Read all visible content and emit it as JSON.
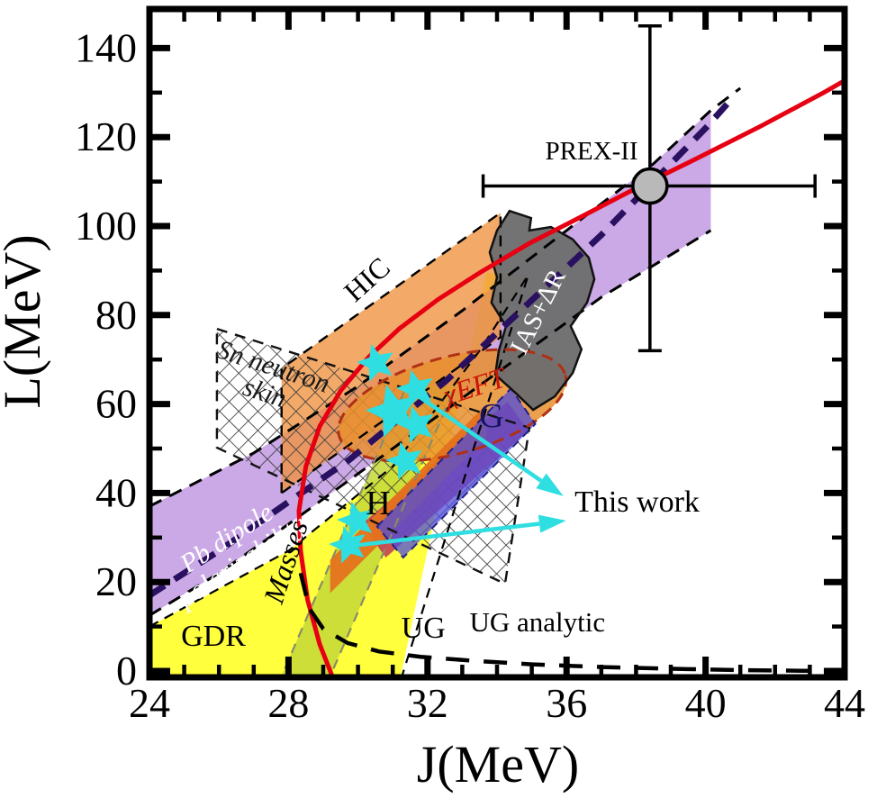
{
  "figure": {
    "background": "#ffffff",
    "frame_color": "#000000",
    "accent_cyan": "#2edee1",
    "accent_red": "#e60012"
  },
  "chart_data": {
    "type": "scatter",
    "title": "",
    "xlabel": "J(MeV)",
    "ylabel": "L(MeV)",
    "xlim": [
      24,
      44
    ],
    "ylim": [
      0,
      140
    ],
    "x_major_ticks": [
      24,
      28,
      32,
      36,
      40,
      44
    ],
    "x_minor_step": 1,
    "y_major_ticks": [
      0,
      20,
      40,
      60,
      80,
      100,
      120,
      140
    ],
    "y_minor_step": 10,
    "grid": false,
    "regions": [
      {
        "id": "gdr",
        "label_lines": [
          "GDR"
        ],
        "label_at": [
          25.84,
          7.7
        ],
        "label_rot": 0,
        "label_color": "#000000",
        "label_size": 34,
        "label_style": "normal",
        "fill": "#ffff2e",
        "fill_opacity": 0.92,
        "polygon": [
          [
            24,
            10
          ],
          [
            28,
            27
          ],
          [
            31,
            46
          ],
          [
            33.5,
            72
          ],
          [
            34.9,
            89
          ],
          [
            33.7,
            89.5
          ],
          [
            31.15,
            -4
          ],
          [
            24,
            -4
          ]
        ],
        "border_paths": [
          [
            [
              24,
              10
            ],
            [
              28,
              27
            ],
            [
              31,
              46
            ],
            [
              33.5,
              72
            ],
            [
              34.9,
              89
            ],
            [
              31.15,
              -4
            ]
          ]
        ],
        "border": {
          "color": "#000000",
          "width": 2.2,
          "dash": [
            11,
            8
          ]
        }
      },
      {
        "id": "pb-dipole-polarizability",
        "label_lines": [
          "Pb dipole",
          "polarizability"
        ],
        "label_at": [
          26.38,
          27.9
        ],
        "label_rot": -33,
        "label_color": "#ffffff",
        "label_size": 30,
        "label_style": "italic",
        "fill": "#a86fd6",
        "fill_opacity": 0.6,
        "polygon": [
          [
            24,
            37
          ],
          [
            27,
            49
          ],
          [
            30,
            64
          ],
          [
            33,
            81
          ],
          [
            36,
            99
          ],
          [
            38.5,
            114
          ],
          [
            40.15,
            126
          ],
          [
            40.15,
            99
          ],
          [
            37,
            84
          ],
          [
            34,
            67
          ],
          [
            31,
            50
          ],
          [
            28,
            33
          ],
          [
            26,
            22
          ],
          [
            24,
            12.5
          ]
        ],
        "border_paths": [
          [
            [
              24,
              37
            ],
            [
              27,
              49
            ],
            [
              30,
              64
            ],
            [
              33,
              81
            ],
            [
              36,
              99
            ],
            [
              38.5,
              114
            ],
            [
              40.15,
              126
            ],
            [
              41,
              131
            ]
          ],
          [
            [
              24,
              12.5
            ],
            [
              26,
              22
            ],
            [
              28,
              33
            ],
            [
              31,
              50
            ],
            [
              34,
              67
            ],
            [
              37,
              84
            ],
            [
              40.15,
              99
            ]
          ]
        ],
        "border": {
          "color": "#000000",
          "width": 3,
          "dash": [
            15,
            10
          ]
        }
      },
      {
        "id": "hic",
        "label_lines": [
          "HIC"
        ],
        "label_at": [
          30.27,
          87.9
        ],
        "label_rot": -42,
        "label_color": "#000000",
        "label_size": 32,
        "label_style": "normal",
        "fill": "#f0923e",
        "fill_opacity": 0.78,
        "border_closed": true,
        "polygon": [
          [
            27.8,
            40
          ],
          [
            27.8,
            68
          ],
          [
            34.1,
            103
          ],
          [
            34.1,
            75
          ]
        ],
        "border": {
          "color": "#000000",
          "width": 2.4,
          "dash": [
            12,
            9
          ]
        }
      },
      {
        "id": "masses",
        "label_lines": [
          "Masses"
        ],
        "label_at": [
          27.94,
          24.5
        ],
        "label_rot": -72,
        "label_color": "#000000",
        "label_size": 32,
        "label_style": "italic",
        "fill": "#c3d836",
        "fill_opacity": 0.85,
        "polygon": [
          [
            27.7,
            -3
          ],
          [
            29.1,
            -3
          ],
          [
            32.8,
            64
          ],
          [
            31.4,
            64
          ]
        ],
        "border_paths": [
          [
            [
              27.7,
              -3
            ],
            [
              31.4,
              64
            ]
          ],
          [
            [
              29.1,
              -3
            ],
            [
              32.8,
              64
            ]
          ]
        ],
        "border": {
          "color": "#8a8a6a",
          "width": 2.2,
          "dash": [
            11,
            8
          ]
        }
      },
      {
        "id": "sn-neutron-skin",
        "label_lines": [
          "Sn neutron",
          "skin"
        ],
        "label_at": [
          27.47,
          66.2
        ],
        "label_rot": 18,
        "label_color": "#1a1a1a",
        "label_size": 30,
        "label_style": "italic",
        "fill": "hatch",
        "fill_opacity": 1,
        "border_closed": true,
        "polygon": [
          [
            25.94,
            76.9
          ],
          [
            34.93,
            54.7
          ],
          [
            34.23,
            19.6
          ],
          [
            25.94,
            50.2
          ]
        ],
        "border": {
          "color": "#111111",
          "width": 2.4,
          "dash": [
            12,
            9
          ]
        }
      },
      {
        "id": "chi-eft",
        "label_lines": [
          "χEFT"
        ],
        "label_at": [
          33.35,
          63.8
        ],
        "label_rot": -18,
        "label_color": "#cc1407",
        "label_size": 32,
        "label_style": "italic",
        "fill": "#e88f2e",
        "fill_opacity": 0.85,
        "ellipse": {
          "cx": 32.71,
          "cy": 59.7,
          "rx_J": 3.37,
          "ry_L": 10.9,
          "rot_deg": -15
        },
        "border": {
          "color": "#b03015",
          "width": 3,
          "dash": [
            13,
            8
          ]
        }
      },
      {
        "id": "crimson-band",
        "label_lines": [],
        "label_at": [
          32,
          45
        ],
        "label_rot": 0,
        "label_color": "#000000",
        "label_size": 0,
        "label_style": "normal",
        "fill": "#c43a56",
        "fill_opacity": 0.88,
        "polygon": [
          [
            30.1,
            33
          ],
          [
            34.3,
            60.5
          ],
          [
            34.9,
            54
          ],
          [
            30.8,
            25.5
          ]
        ]
      },
      {
        "id": "h-band",
        "label_lines": [
          "H"
        ],
        "label_at": [
          30.58,
          37.2
        ],
        "label_rot": 0,
        "label_color": "#000000",
        "label_size": 38,
        "label_style": "normal",
        "fill": "#e4721e",
        "fill_opacity": 0.95,
        "polygon": [
          [
            29.2,
            17.5
          ],
          [
            29.2,
            25
          ],
          [
            33.7,
            60
          ],
          [
            33.7,
            52.5
          ]
        ]
      },
      {
        "id": "g-band",
        "label_lines": [
          "G"
        ],
        "label_at": [
          33.84,
          56.9
        ],
        "label_rot": 0,
        "label_color": "#15155e",
        "label_size": 38,
        "label_style": "normal",
        "fill": "#4d4cdb",
        "fill_opacity": 0.75,
        "border_closed": true,
        "polygon": [
          [
            30.55,
            32.5
          ],
          [
            34.4,
            63.5
          ],
          [
            35.1,
            55.5
          ],
          [
            31.3,
            25.5
          ]
        ],
        "border": {
          "color": "#222288",
          "width": 2,
          "dash": [
            9,
            7
          ]
        }
      },
      {
        "id": "ias-dr",
        "label_lines": [
          "IAS+ΔR"
        ],
        "label_at": [
          35.16,
          80.8
        ],
        "label_rot": -63,
        "label_color": "#ffffff",
        "label_size": 29,
        "label_style": "normal",
        "fill": "#6d6d6d",
        "fill_opacity": 0.96,
        "border_closed": true,
        "polygon": [
          [
            34.36,
            103.4
          ],
          [
            34.98,
            101.8
          ],
          [
            34.93,
            99.0
          ],
          [
            35.55,
            99.8
          ],
          [
            36.18,
            97.0
          ],
          [
            36.64,
            92.9
          ],
          [
            36.8,
            88.1
          ],
          [
            36.59,
            82.8
          ],
          [
            36.12,
            77.5
          ],
          [
            36.43,
            72.3
          ],
          [
            36.18,
            67.0
          ],
          [
            35.66,
            61.7
          ],
          [
            35.04,
            58.7
          ],
          [
            34.52,
            62.6
          ],
          [
            33.95,
            66.6
          ],
          [
            34.05,
            71.9
          ],
          [
            34.26,
            77.5
          ],
          [
            33.84,
            82.8
          ],
          [
            34.0,
            88.5
          ],
          [
            33.79,
            94.1
          ],
          [
            34.0,
            99.0
          ]
        ],
        "border": {
          "color": "#111111",
          "width": 2.5,
          "dash": null
        }
      }
    ],
    "curves": [
      {
        "id": "posterior-band-midline",
        "label": "",
        "color": "#2a1060",
        "width": 7,
        "dash": [
          20,
          13
        ],
        "points": [
          [
            24,
            17
          ],
          [
            26,
            27
          ],
          [
            28,
            38
          ],
          [
            29.75,
            47.5
          ],
          [
            31,
            55.5
          ],
          [
            32.5,
            65
          ],
          [
            34,
            76
          ],
          [
            35.5,
            87
          ],
          [
            37,
            98
          ],
          [
            38.5,
            110
          ],
          [
            40,
            122
          ],
          [
            40.8,
            129
          ]
        ]
      },
      {
        "id": "ug",
        "label": "UG",
        "color": "#e60012",
        "width": 5,
        "dash": null,
        "points": [
          [
            29.3,
            -2
          ],
          [
            28.9,
            6
          ],
          [
            28.55,
            16
          ],
          [
            28.35,
            27
          ],
          [
            28.3,
            36
          ],
          [
            28.5,
            46
          ],
          [
            28.9,
            55
          ],
          [
            29.5,
            63
          ],
          [
            30.3,
            70.5
          ],
          [
            31.2,
            77
          ],
          [
            32.3,
            83.5
          ],
          [
            33.5,
            89.5
          ],
          [
            34.9,
            96
          ],
          [
            36.4,
            102
          ],
          [
            38,
            108.5
          ],
          [
            39.7,
            115
          ],
          [
            41.6,
            122.5
          ],
          [
            43.4,
            130
          ],
          [
            44.4,
            134.5
          ]
        ]
      },
      {
        "id": "ug-analytic",
        "label": "UG analytic",
        "color": "#000000",
        "width": 4.5,
        "dash": [
          26,
          16
        ],
        "points": [
          [
            28.35,
            22
          ],
          [
            28.6,
            14
          ],
          [
            29,
            9.5
          ],
          [
            29.7,
            6.3
          ],
          [
            30.6,
            4.4
          ],
          [
            31.8,
            3.2
          ],
          [
            33.3,
            2.3
          ],
          [
            35,
            1.5
          ],
          [
            37,
            0.9
          ],
          [
            39,
            0.5
          ],
          [
            41,
            0.2
          ],
          [
            43,
            0.05
          ],
          [
            44.4,
            0
          ]
        ]
      }
    ],
    "prex2": {
      "label": "PREX-II",
      "J": 38.4,
      "L": 109,
      "J_err_minus": 4.8,
      "J_err_plus": 4.75,
      "L_err_plus": 36,
      "L_err_minus": 37,
      "marker_fill": "#b9b9b9",
      "marker_stroke": "#000000",
      "marker_radius_px": 19
    },
    "this_work": {
      "label": "This work",
      "color": "#2edee1",
      "points": [
        {
          "J": 30.53,
          "L": 69.2,
          "size": "normal"
        },
        {
          "J": 31.67,
          "L": 63.4,
          "size": "normal"
        },
        {
          "J": 31.02,
          "L": 58.3,
          "size": "large"
        },
        {
          "J": 31.69,
          "L": 55.3,
          "size": "normal"
        },
        {
          "J": 31.36,
          "L": 47.2,
          "size": "normal"
        },
        {
          "J": 29.96,
          "L": 33.8,
          "size": "normal"
        },
        {
          "J": 29.73,
          "L": 28.3,
          "size": "normal"
        }
      ]
    },
    "arrows": [
      {
        "id": "arrow-upper",
        "from": [
          31.36,
          63.8
        ],
        "to": [
          35.91,
          39.3
        ]
      },
      {
        "id": "arrow-lower",
        "from": [
          29.8,
          28.1
        ],
        "to": [
          35.99,
          33.8
        ]
      }
    ],
    "annotations": [
      {
        "id": "this-work-label",
        "text": "This work",
        "at": [
          36.23,
          35.8
        ],
        "anchor": "start",
        "size": 34,
        "color": "#000000",
        "style": "normal"
      },
      {
        "id": "prex2-label",
        "text": "PREX-II",
        "at": [
          36.72,
          115.0
        ],
        "anchor": "middle",
        "size": 29,
        "color": "#000000",
        "style": "normal"
      },
      {
        "id": "ug-label",
        "text": "UG",
        "at": [
          31.88,
          7.5
        ],
        "anchor": "middle",
        "size": 34,
        "color": "#000000",
        "style": "normal"
      },
      {
        "id": "ug-analytic-label",
        "text": "UG analytic",
        "at": [
          35.16,
          8.9
        ],
        "anchor": "middle",
        "size": 31,
        "color": "#000000",
        "style": "normal"
      }
    ]
  }
}
